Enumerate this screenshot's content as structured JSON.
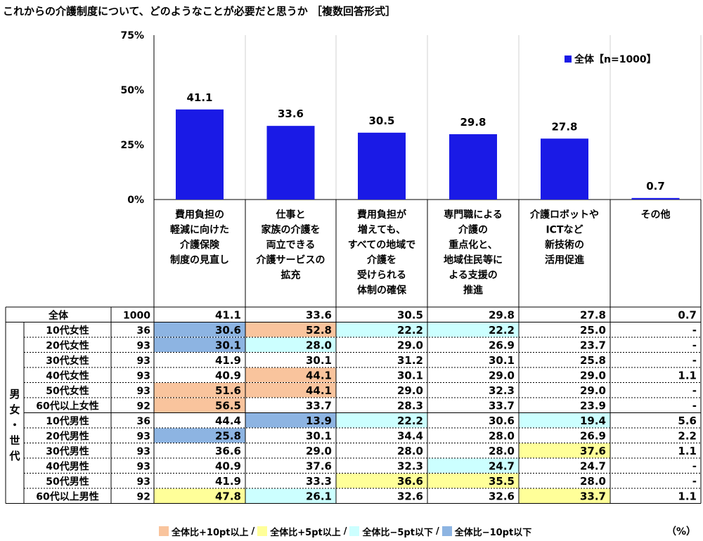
{
  "title": "これからの介護制度について、どのようなことが必要だと思うか ［複数回答形式］",
  "chart_data": {
    "type": "bar",
    "categories": [
      "費用負担の軽減に向けた介護保険制度の見直し",
      "仕事と家族の介護を両立できる介護サービスの拡充",
      "費用負担が増えても、すべての地域で介護を受けられる体制の確保",
      "専門職による介護の重点化と、地域住民等による支援の推進",
      "介護ロボットやICTなど新技術の活用促進",
      "その他"
    ],
    "category_lines": [
      [
        "費用負担の",
        "軽減に向けた",
        "介護保険",
        "制度の見直し"
      ],
      [
        "仕事と",
        "家族の介護を",
        "両立できる",
        "介護サービスの",
        "拡充"
      ],
      [
        "費用負担が",
        "増えても、",
        "すべての地域で",
        "介護を",
        "受けられる",
        "体制の確保"
      ],
      [
        "専門職による",
        "介護の",
        "重点化と、",
        "地域住民等に",
        "よる支援の",
        "推進"
      ],
      [
        "介護ロボットや",
        "ICTなど",
        "新技術の",
        "活用促進"
      ],
      [
        "その他"
      ]
    ],
    "series": [
      {
        "name": "全体【n=1000】",
        "values": [
          41.1,
          33.6,
          30.5,
          29.8,
          27.8,
          0.7
        ]
      }
    ],
    "value_labels": [
      "41.1",
      "33.6",
      "30.5",
      "29.8",
      "27.8",
      "0.7"
    ],
    "y_ticks": [
      "0%",
      "25%",
      "50%",
      "75%"
    ],
    "y_tick_values": [
      0,
      25,
      50,
      75
    ],
    "ylim": [
      0,
      75
    ],
    "legend_label": "全体【n=1000】",
    "legend_position": "top-right",
    "bar_color": "#1a1ae6"
  },
  "table": {
    "group_label_chars": [
      "男",
      "女",
      "・",
      "世",
      "代"
    ],
    "total_row": {
      "label": "全体",
      "n": "1000",
      "values": [
        "41.1",
        "33.6",
        "30.5",
        "29.8",
        "27.8",
        "0.7"
      ]
    },
    "rows": [
      {
        "label": "10代女性",
        "n": "36",
        "values": [
          "30.6",
          "52.8",
          "22.2",
          "22.2",
          "25.0",
          "-"
        ],
        "marks": [
          "m10",
          "p10",
          "m5",
          "m5",
          "",
          ""
        ]
      },
      {
        "label": "20代女性",
        "n": "93",
        "values": [
          "30.1",
          "28.0",
          "29.0",
          "26.9",
          "23.7",
          "-"
        ],
        "marks": [
          "m10",
          "m5",
          "",
          "",
          "",
          ""
        ]
      },
      {
        "label": "30代女性",
        "n": "93",
        "values": [
          "41.9",
          "30.1",
          "31.2",
          "30.1",
          "25.8",
          "-"
        ],
        "marks": [
          "",
          "",
          "",
          "",
          "",
          ""
        ]
      },
      {
        "label": "40代女性",
        "n": "93",
        "values": [
          "40.9",
          "44.1",
          "30.1",
          "29.0",
          "29.0",
          "1.1"
        ],
        "marks": [
          "",
          "p10",
          "",
          "",
          "",
          ""
        ]
      },
      {
        "label": "50代女性",
        "n": "93",
        "values": [
          "51.6",
          "44.1",
          "29.0",
          "32.3",
          "29.0",
          "-"
        ],
        "marks": [
          "p10",
          "p10",
          "",
          "",
          "",
          ""
        ]
      },
      {
        "label": "60代以上女性",
        "n": "92",
        "values": [
          "56.5",
          "33.7",
          "28.3",
          "33.7",
          "23.9",
          "-"
        ],
        "marks": [
          "p10",
          "",
          "",
          "",
          "",
          ""
        ]
      },
      {
        "label": "10代男性",
        "n": "36",
        "values": [
          "44.4",
          "13.9",
          "22.2",
          "30.6",
          "19.4",
          "5.6"
        ],
        "marks": [
          "",
          "m10",
          "m5",
          "",
          "m5",
          ""
        ]
      },
      {
        "label": "20代男性",
        "n": "93",
        "values": [
          "25.8",
          "30.1",
          "34.4",
          "28.0",
          "26.9",
          "2.2"
        ],
        "marks": [
          "m10",
          "",
          "",
          "",
          "",
          ""
        ]
      },
      {
        "label": "30代男性",
        "n": "93",
        "values": [
          "36.6",
          "29.0",
          "28.0",
          "28.0",
          "37.6",
          "1.1"
        ],
        "marks": [
          "",
          "",
          "",
          "",
          "p5",
          ""
        ]
      },
      {
        "label": "40代男性",
        "n": "93",
        "values": [
          "40.9",
          "37.6",
          "32.3",
          "24.7",
          "24.7",
          "-"
        ],
        "marks": [
          "",
          "",
          "",
          "m5",
          "",
          ""
        ]
      },
      {
        "label": "50代男性",
        "n": "93",
        "values": [
          "41.9",
          "33.3",
          "36.6",
          "35.5",
          "28.0",
          "-"
        ],
        "marks": [
          "",
          "",
          "p5",
          "p5",
          "",
          ""
        ]
      },
      {
        "label": "60代以上男性",
        "n": "92",
        "values": [
          "47.8",
          "26.1",
          "32.6",
          "32.6",
          "33.7",
          "1.1"
        ],
        "marks": [
          "p5",
          "m5",
          "",
          "",
          "p5",
          ""
        ]
      }
    ]
  },
  "highlight_colors": {
    "p10": "#f9c49d",
    "p5": "#ffff99",
    "m5": "#ccffff",
    "m10": "#8db4e2"
  },
  "legend": {
    "items": [
      {
        "key": "p10",
        "label": "全体比+10pt以上"
      },
      {
        "key": "p5",
        "label": "全体比+5pt以上"
      },
      {
        "key": "m5",
        "label": "全体比−5pt以下"
      },
      {
        "key": "m10",
        "label": "全体比−10pt以下"
      }
    ],
    "separator": "/",
    "unit": "（%）"
  }
}
